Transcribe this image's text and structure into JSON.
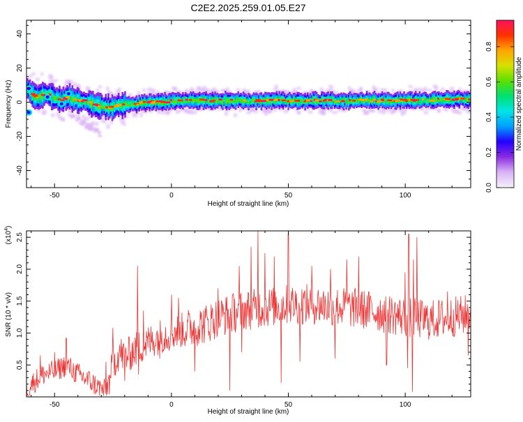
{
  "page_title": "C2E2.2025.259.01.05.E27",
  "chart_data": [
    {
      "type": "heatmap",
      "ylabel": "Frequency (Hz)",
      "xlabel": "Height of straight line (km)",
      "xlim": [
        -62,
        128
      ],
      "ylim": [
        -50,
        48
      ],
      "x_ticks": [
        -50,
        0,
        50,
        100
      ],
      "y_ticks": [
        -40,
        -20,
        0,
        20,
        40
      ],
      "colorbar": {
        "label": "Normalized spectral amplitude",
        "range": [
          0,
          0.95
        ],
        "ticks": [
          0.0,
          0.2,
          0.4,
          0.6,
          0.8
        ],
        "colors": [
          "#f4f0fb",
          "#d9b3f5",
          "#8a2be2",
          "#2200ff",
          "#00a0ff",
          "#00e5e5",
          "#00e070",
          "#5de000",
          "#d8e000",
          "#ffa500",
          "#ff3000",
          "#ff1060"
        ]
      },
      "ridge": {
        "x": [
          -62,
          -60,
          -58,
          -56,
          -54,
          -52,
          -50,
          -48,
          -46,
          -44,
          -42,
          -40,
          -38,
          -36,
          -34,
          -32,
          -30,
          -28,
          -26,
          -24,
          -22,
          -20,
          -15,
          -10,
          -5,
          0,
          10,
          20,
          40,
          60,
          80,
          100,
          128
        ],
        "y": [
          8,
          5,
          3,
          4,
          5,
          4,
          3,
          1,
          2,
          3,
          2,
          1,
          1,
          0,
          -1,
          -2,
          -2,
          -3,
          -3,
          -2,
          -2,
          -1,
          -1,
          0,
          0,
          1,
          1,
          1,
          1,
          1,
          1,
          1,
          2
        ]
      },
      "secondary_branch": {
        "x": [
          -46,
          -43,
          -40,
          -38,
          -36,
          -34,
          -32,
          -30
        ],
        "y": [
          -4,
          -7,
          -10,
          -12,
          -14,
          -15,
          -17,
          -19
        ]
      },
      "grid": false
    },
    {
      "type": "line",
      "ylabel": "SNR (10 * v/v)",
      "xlabel": "Height of straight line (km)",
      "y_multiplier_label": "(x10",
      "y_multiplier_exp": "4",
      "y_multiplier_close": ")",
      "xlim": [
        -62,
        128
      ],
      "ylim": [
        0,
        2.6
      ],
      "x_ticks": [
        -50,
        0,
        50,
        100
      ],
      "y_ticks": [
        0.5,
        1.0,
        1.5,
        2.0,
        2.5
      ],
      "line_color": "#ee3333",
      "envelope": {
        "x": [
          -62,
          -60,
          -55,
          -50,
          -45,
          -40,
          -35,
          -30,
          -28,
          -26,
          -24,
          -22,
          -20,
          -15,
          -10,
          -5,
          0,
          5,
          10,
          15,
          20,
          25,
          30,
          40,
          50,
          60,
          70,
          80,
          90,
          100,
          110,
          120,
          128
        ],
        "y": [
          0.1,
          0.2,
          0.35,
          0.4,
          0.5,
          0.35,
          0.25,
          0.12,
          0.1,
          0.35,
          0.6,
          0.7,
          0.62,
          0.75,
          0.85,
          0.95,
          1.0,
          1.05,
          1.1,
          1.15,
          1.25,
          1.3,
          1.35,
          1.4,
          1.45,
          1.45,
          1.42,
          1.38,
          1.32,
          1.25,
          1.2,
          1.25,
          1.3
        ]
      },
      "spikes": {
        "x": [
          -56,
          -50,
          -45,
          -40,
          -28,
          -25,
          -20,
          -14.5,
          -12,
          0,
          3,
          10,
          20,
          25,
          29,
          34,
          37,
          40,
          44,
          47,
          50,
          60,
          68,
          75,
          80,
          92,
          100,
          101.5,
          103.5,
          105,
          118,
          127
        ],
        "y": [
          0.65,
          0.7,
          0.92,
          0.5,
          0.55,
          1.08,
          1.12,
          2.05,
          1.35,
          1.6,
          1.55,
          1.5,
          1.7,
          1.95,
          2.05,
          2.35,
          2.6,
          2.25,
          2.2,
          2.3,
          2.55,
          2.05,
          2.0,
          2.15,
          2.2,
          2.0,
          1.95,
          2.55,
          2.15,
          2.5,
          1.65,
          1.7
        ]
      },
      "dips": {
        "x": [
          -26,
          -20,
          -14,
          -5,
          10,
          25,
          30,
          47,
          55,
          70,
          92,
          101,
          103,
          127
        ],
        "y": [
          0.3,
          0.25,
          0.35,
          0.6,
          0.4,
          0.1,
          0.7,
          0.22,
          0.55,
          0.6,
          0.5,
          0.45,
          0.08,
          0.65
        ]
      },
      "grid": false
    }
  ]
}
